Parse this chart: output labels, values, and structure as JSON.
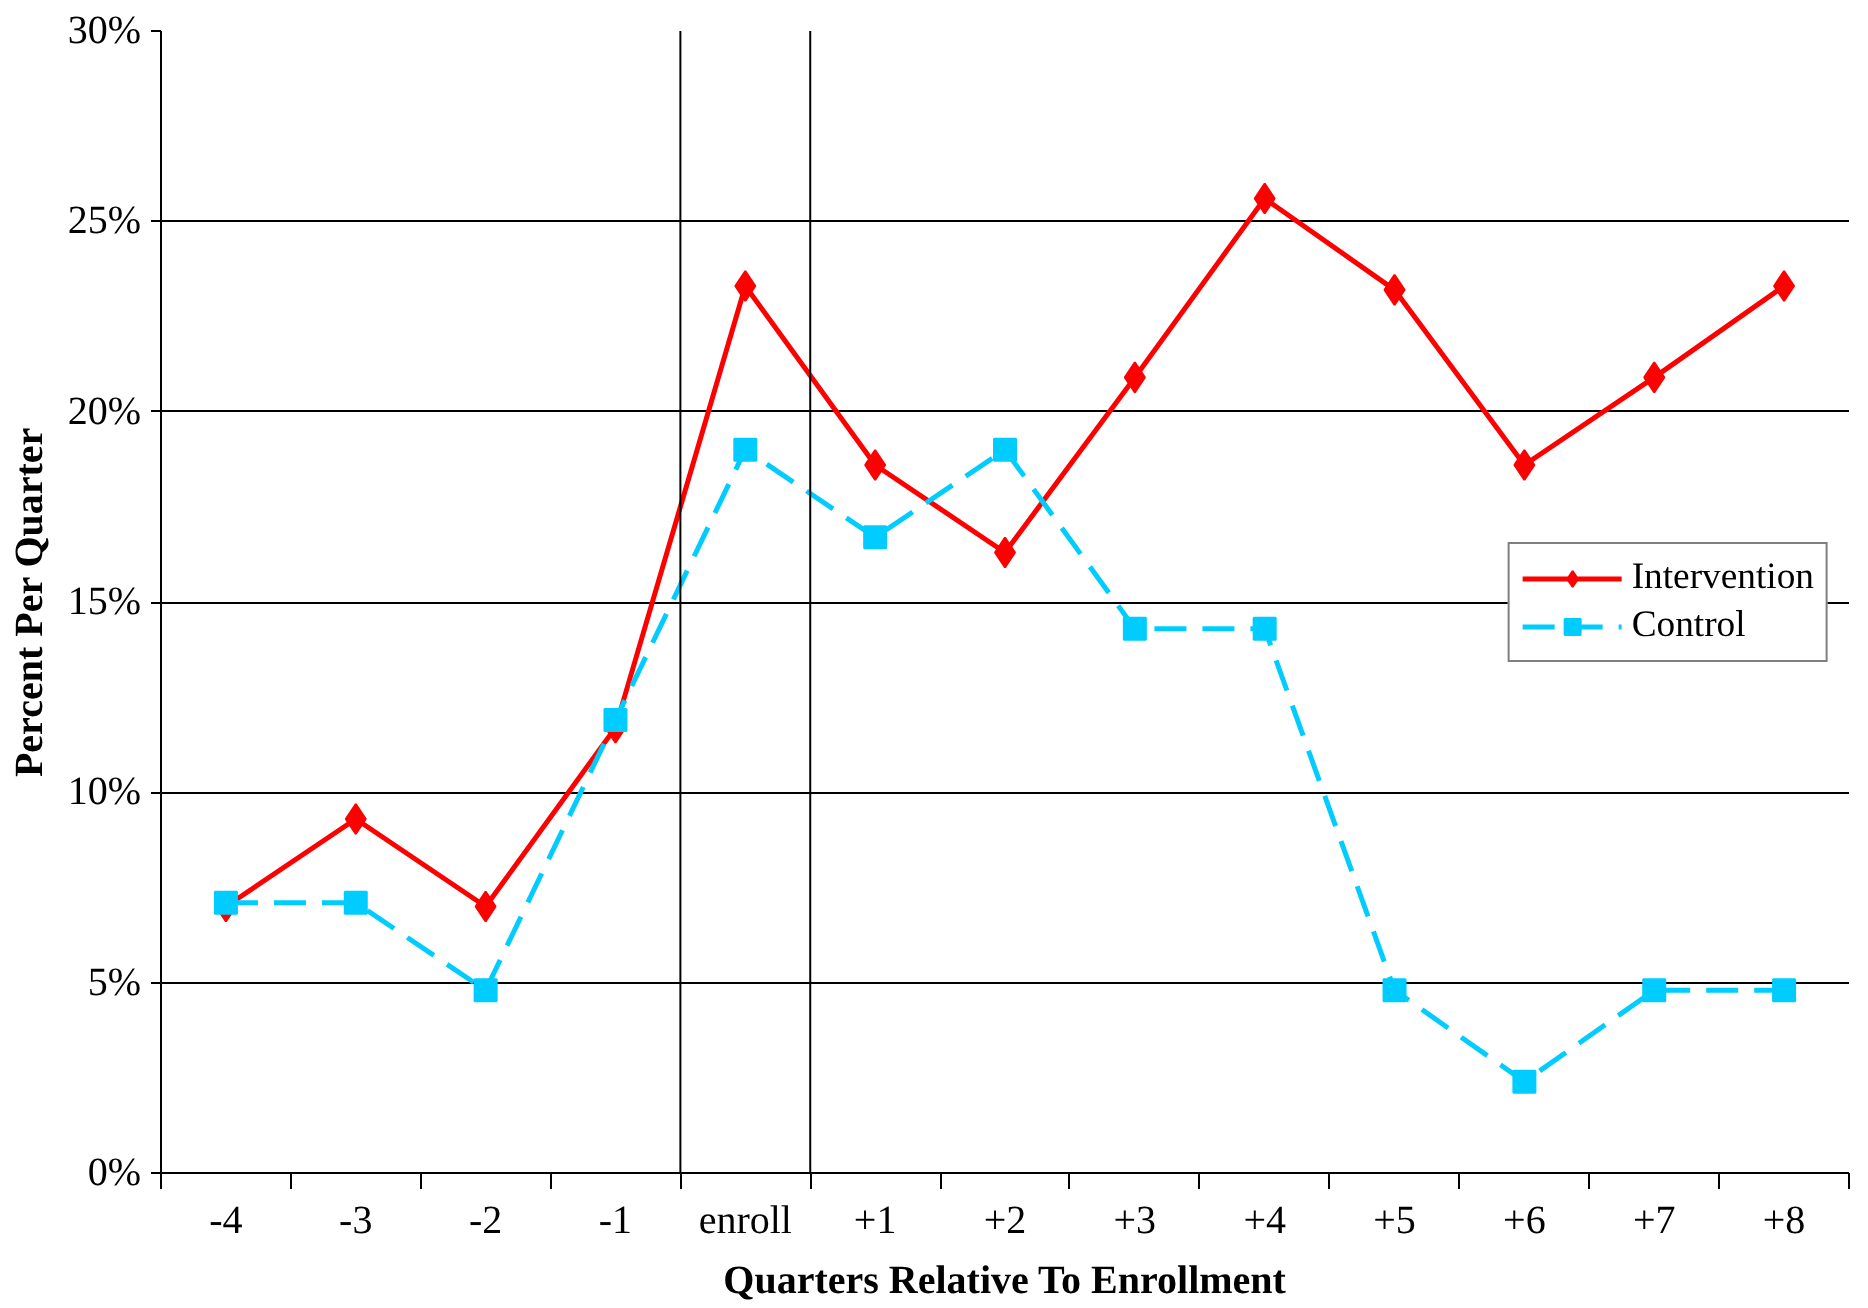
{
  "chart_data": {
    "type": "line",
    "xlabel": "Quarters Relative To Enrollment",
    "ylabel": "Percent Per Quarter",
    "categories": [
      "-4",
      "-3",
      "-2",
      "-1",
      "enroll",
      "+1",
      "+2",
      "+3",
      "+4",
      "+5",
      "+6",
      "+7",
      "+8"
    ],
    "series": [
      {
        "name": "Intervention",
        "color": "#ff0000",
        "marker": "diamond",
        "line_style": "solid",
        "values": [
          7.0,
          9.3,
          7.0,
          11.7,
          23.3,
          18.6,
          16.3,
          20.9,
          25.6,
          23.2,
          18.6,
          20.9,
          23.3
        ]
      },
      {
        "name": "Control",
        "color": "#00ccff",
        "marker": "square",
        "line_style": "dashed",
        "values": [
          7.1,
          7.1,
          4.8,
          11.9,
          19.0,
          16.7,
          19.0,
          14.3,
          14.3,
          4.8,
          2.4,
          4.8,
          4.8
        ]
      }
    ],
    "ylim": [
      0,
      30
    ],
    "yticks": [
      {
        "value": 0,
        "label": "0%"
      },
      {
        "value": 5,
        "label": "5%"
      },
      {
        "value": 10,
        "label": "10%"
      },
      {
        "value": 15,
        "label": "15%"
      },
      {
        "value": 20,
        "label": "20%"
      },
      {
        "value": 25,
        "label": "25%"
      },
      {
        "value": 30,
        "label": "30%"
      }
    ],
    "grid": "y",
    "legend": "right"
  }
}
